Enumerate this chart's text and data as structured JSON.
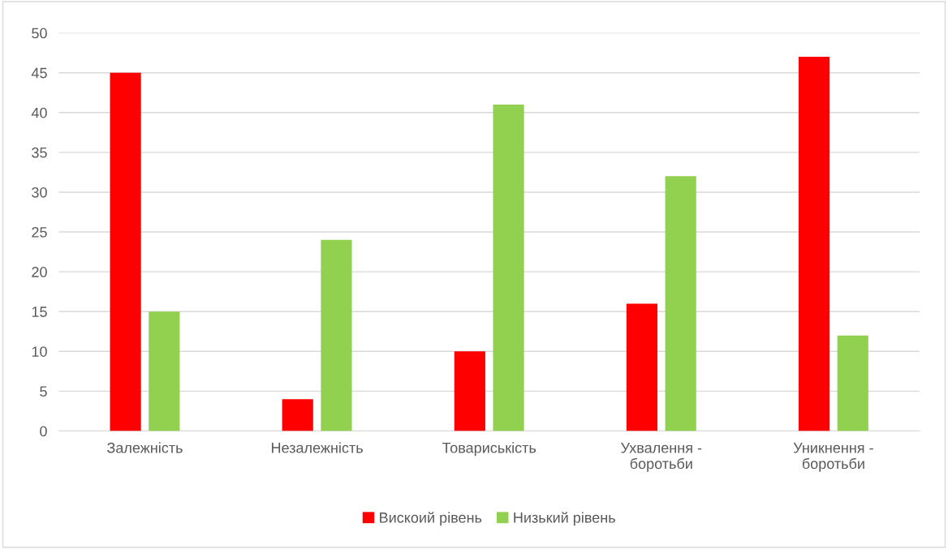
{
  "chart_data": {
    "type": "bar",
    "categories": [
      "Залежність",
      "Незалежність",
      "Товариськість",
      "Ухвалення -\nборотьби",
      "Уникнення -\nборотьби"
    ],
    "series": [
      {
        "name": "Вискоий рівень",
        "color": "#ff0000",
        "values": [
          45,
          4,
          10,
          16,
          47
        ]
      },
      {
        "name": "Низький рівень",
        "color": "#92d050",
        "values": [
          15,
          24,
          41,
          32,
          12
        ]
      }
    ],
    "ylim": [
      0,
      50
    ],
    "yticks": [
      0,
      5,
      10,
      15,
      20,
      25,
      30,
      35,
      40,
      45,
      50
    ],
    "grid": "y",
    "legend": "bottom"
  }
}
